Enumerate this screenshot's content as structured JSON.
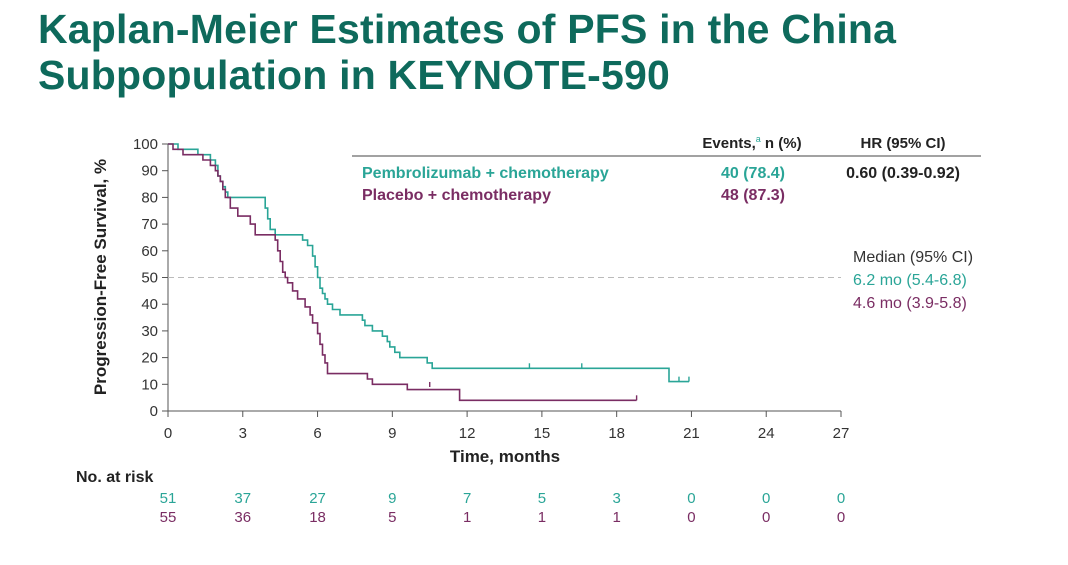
{
  "page": {
    "title_line1": "Kaplan-Meier Estimates of PFS in the China",
    "title_line2": "Subpopulation in KEYNOTE-590"
  },
  "colors": {
    "title": "#0e6a5c",
    "pembro": "#2aa597",
    "placebo": "#7a2d63",
    "axis": "#555555",
    "dark": "#222222",
    "median_line": "#bbbbbb"
  },
  "table": {
    "events_header": "Events,",
    "events_footnote": "a",
    "events_header_suffix": " n (%)",
    "hr_header": "HR (95% CI)",
    "rows": [
      {
        "label": "Pembrolizumab + chemotherapy",
        "events": "40 (78.4)",
        "hr": "0.60 (0.39-0.92)",
        "color_key": "pembro"
      },
      {
        "label": "Placebo + chemotherapy",
        "events": "48 (87.3)",
        "hr": "",
        "color_key": "placebo"
      }
    ]
  },
  "median": {
    "header": "Median (95% CI)",
    "values": [
      {
        "text": "6.2 mo (5.4-6.8)",
        "color_key": "pembro"
      },
      {
        "text": "4.6 mo (3.9-5.8)",
        "color_key": "placebo"
      }
    ]
  },
  "risk": {
    "label": "No. at risk",
    "rows": [
      {
        "color_key": "pembro",
        "values": [
          "51",
          "37",
          "27",
          "9",
          "7",
          "5",
          "3",
          "0",
          "0",
          "0"
        ]
      },
      {
        "color_key": "placebo",
        "values": [
          "55",
          "36",
          "18",
          "5",
          "1",
          "1",
          "1",
          "0",
          "0",
          "0"
        ]
      }
    ]
  },
  "chart_data": {
    "type": "line",
    "subtype": "kaplan-meier step curve",
    "xlabel": "Time, months",
    "ylabel": "Progression-Free Survival, %",
    "xlim": [
      0,
      27
    ],
    "ylim": [
      0,
      100
    ],
    "x_ticks": [
      0,
      3,
      6,
      9,
      12,
      15,
      18,
      21,
      24,
      27
    ],
    "y_ticks": [
      0,
      10,
      20,
      30,
      40,
      50,
      60,
      70,
      80,
      90,
      100
    ],
    "reference_line_y": 50,
    "series": [
      {
        "name": "Pembrolizumab + chemotherapy",
        "color_key": "pembro",
        "points": [
          [
            0,
            100
          ],
          [
            0.4,
            100
          ],
          [
            0.4,
            98
          ],
          [
            1.2,
            98
          ],
          [
            1.2,
            96
          ],
          [
            1.7,
            96
          ],
          [
            1.7,
            94
          ],
          [
            1.9,
            94
          ],
          [
            1.9,
            92
          ],
          [
            2.0,
            92
          ],
          [
            2.0,
            88
          ],
          [
            2.1,
            88
          ],
          [
            2.1,
            86
          ],
          [
            2.2,
            86
          ],
          [
            2.2,
            84
          ],
          [
            2.3,
            84
          ],
          [
            2.3,
            82
          ],
          [
            2.4,
            82
          ],
          [
            2.4,
            80
          ],
          [
            3.9,
            80
          ],
          [
            3.9,
            76
          ],
          [
            4.0,
            76
          ],
          [
            4.0,
            72
          ],
          [
            4.1,
            72
          ],
          [
            4.1,
            68
          ],
          [
            4.3,
            68
          ],
          [
            4.3,
            66
          ],
          [
            5.4,
            66
          ],
          [
            5.4,
            64
          ],
          [
            5.6,
            64
          ],
          [
            5.6,
            62
          ],
          [
            5.8,
            62
          ],
          [
            5.8,
            58
          ],
          [
            5.9,
            58
          ],
          [
            5.9,
            54
          ],
          [
            6.0,
            54
          ],
          [
            6.0,
            50
          ],
          [
            6.1,
            50
          ],
          [
            6.1,
            46
          ],
          [
            6.2,
            46
          ],
          [
            6.2,
            44
          ],
          [
            6.3,
            44
          ],
          [
            6.3,
            42
          ],
          [
            6.4,
            42
          ],
          [
            6.4,
            40
          ],
          [
            6.6,
            40
          ],
          [
            6.6,
            38
          ],
          [
            6.9,
            38
          ],
          [
            6.9,
            36
          ],
          [
            7.8,
            36
          ],
          [
            7.8,
            34
          ],
          [
            7.9,
            34
          ],
          [
            7.9,
            32
          ],
          [
            8.2,
            32
          ],
          [
            8.2,
            30
          ],
          [
            8.6,
            30
          ],
          [
            8.6,
            28
          ],
          [
            8.8,
            28
          ],
          [
            8.8,
            26
          ],
          [
            8.9,
            26
          ],
          [
            8.9,
            24
          ],
          [
            9.1,
            24
          ],
          [
            9.1,
            22
          ],
          [
            9.3,
            22
          ],
          [
            9.3,
            20
          ],
          [
            10.4,
            20
          ],
          [
            10.4,
            18
          ],
          [
            10.6,
            18
          ],
          [
            10.6,
            16
          ],
          [
            20.1,
            16
          ],
          [
            20.1,
            11
          ],
          [
            20.9,
            11
          ]
        ],
        "censors": [
          [
            14.5,
            16
          ],
          [
            16.6,
            16
          ],
          [
            20.5,
            11
          ],
          [
            20.9,
            11
          ]
        ]
      },
      {
        "name": "Placebo + chemotherapy",
        "color_key": "placebo",
        "points": [
          [
            0,
            100
          ],
          [
            0.2,
            100
          ],
          [
            0.2,
            98
          ],
          [
            0.6,
            98
          ],
          [
            0.6,
            96
          ],
          [
            1.4,
            96
          ],
          [
            1.4,
            94
          ],
          [
            1.7,
            94
          ],
          [
            1.7,
            92
          ],
          [
            1.9,
            92
          ],
          [
            1.9,
            90
          ],
          [
            2.0,
            90
          ],
          [
            2.0,
            88
          ],
          [
            2.1,
            88
          ],
          [
            2.1,
            86
          ],
          [
            2.2,
            86
          ],
          [
            2.2,
            83
          ],
          [
            2.3,
            83
          ],
          [
            2.3,
            80
          ],
          [
            2.5,
            80
          ],
          [
            2.5,
            76
          ],
          [
            2.8,
            76
          ],
          [
            2.8,
            73
          ],
          [
            3.3,
            73
          ],
          [
            3.3,
            70
          ],
          [
            3.5,
            70
          ],
          [
            3.5,
            66
          ],
          [
            4.3,
            66
          ],
          [
            4.3,
            64
          ],
          [
            4.4,
            64
          ],
          [
            4.4,
            60
          ],
          [
            4.5,
            60
          ],
          [
            4.5,
            56
          ],
          [
            4.6,
            56
          ],
          [
            4.6,
            52
          ],
          [
            4.7,
            52
          ],
          [
            4.7,
            50
          ],
          [
            4.8,
            50
          ],
          [
            4.8,
            48
          ],
          [
            5.0,
            48
          ],
          [
            5.0,
            45
          ],
          [
            5.2,
            45
          ],
          [
            5.2,
            42
          ],
          [
            5.5,
            42
          ],
          [
            5.5,
            39
          ],
          [
            5.7,
            39
          ],
          [
            5.7,
            36
          ],
          [
            5.8,
            36
          ],
          [
            5.8,
            33
          ],
          [
            6.0,
            33
          ],
          [
            6.0,
            29
          ],
          [
            6.1,
            29
          ],
          [
            6.1,
            25
          ],
          [
            6.2,
            25
          ],
          [
            6.2,
            21
          ],
          [
            6.3,
            21
          ],
          [
            6.3,
            18
          ],
          [
            6.4,
            18
          ],
          [
            6.4,
            14
          ],
          [
            8.0,
            14
          ],
          [
            8.0,
            12
          ],
          [
            8.2,
            12
          ],
          [
            8.2,
            10
          ],
          [
            9.6,
            10
          ],
          [
            9.6,
            8
          ],
          [
            11.7,
            8
          ],
          [
            11.7,
            4
          ],
          [
            18.8,
            4
          ]
        ],
        "censors": [
          [
            10.5,
            9
          ],
          [
            18.8,
            4
          ]
        ]
      }
    ]
  }
}
